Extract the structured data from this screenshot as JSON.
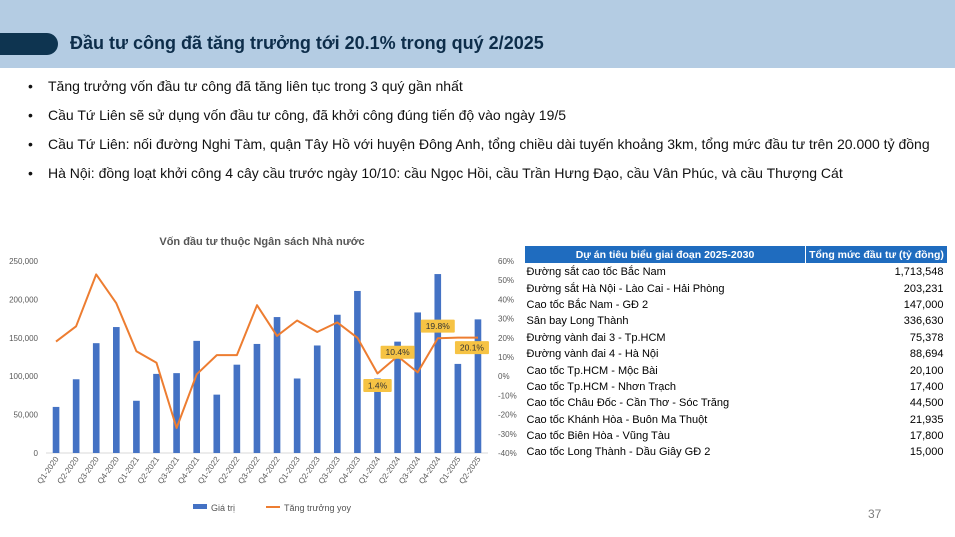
{
  "header": {
    "title": "Đầu tư công đã tăng trưởng tới 20.1% trong quý 2/2025"
  },
  "bullets": [
    "Tăng trưởng vốn đầu tư công đã tăng liên tục trong 3 quý gần nhất",
    "Cầu Tứ Liên sẽ sử dụng vốn đầu tư công, đã khởi công đúng tiến độ vào ngày 19/5",
    "Cầu Tứ Liên: nối đường Nghi Tàm, quận Tây Hồ  với huyện Đông Anh, tổng chiều dài tuyến khoảng 3km, tổng mức đầu tư trên 20.000 tỷ đồng",
    "Hà Nội: đồng loạt khởi công 4 cây cầu trước ngày 10/10: cầu Ngọc Hồi, cầu Trần Hưng Đạo, cầu Vân Phúc, và cầu Thượng Cát"
  ],
  "chart_data": {
    "type": "bar",
    "title": "Vốn đầu tư thuộc Ngân sách Nhà nước",
    "categories": [
      "Q1-2020",
      "Q2-2020",
      "Q3-2020",
      "Q4-2020",
      "Q1-2021",
      "Q2-2021",
      "Q3-2021",
      "Q4-2021",
      "Q1-2022",
      "Q2-2022",
      "Q3-2022",
      "Q4-2022",
      "Q1-2023",
      "Q2-2023",
      "Q3-2023",
      "Q4-2023",
      "Q1-2024",
      "Q2-2024",
      "Q3-2024",
      "Q4-2024",
      "Q1-2025",
      "Q2-2025"
    ],
    "series": [
      {
        "name": "Giá trị",
        "type": "bar",
        "axis": "left",
        "color": "#4472c4",
        "values": [
          60000,
          96000,
          143000,
          164000,
          68000,
          103000,
          104000,
          146000,
          76000,
          115000,
          142000,
          177000,
          97000,
          140000,
          180000,
          211000,
          97000,
          145000,
          183000,
          233000,
          116000,
          174000
        ]
      },
      {
        "name": "Tăng trưởng yoy",
        "type": "line",
        "axis": "right",
        "color": "#ed7d31",
        "values": [
          18,
          26,
          53,
          38,
          13,
          7,
          -27,
          1,
          11,
          11,
          37,
          21,
          29,
          23,
          28,
          20,
          1.4,
          10.4,
          2,
          19.8,
          20.1,
          20.1
        ]
      }
    ],
    "left_axis": {
      "ylim": [
        0,
        250000
      ],
      "ticks": [
        "0",
        "50,000",
        "100,000",
        "150,000",
        "200,000",
        "250,000"
      ]
    },
    "right_axis": {
      "ylim": [
        -40,
        60
      ],
      "ticks": [
        "-40%",
        "-30%",
        "-20%",
        "-10%",
        "0%",
        "10%",
        "20%",
        "30%",
        "40%",
        "50%",
        "60%"
      ]
    },
    "annotations": [
      {
        "text": "1.4%",
        "index": 16
      },
      {
        "text": "10.4%",
        "index": 17
      },
      {
        "text": "19.8%",
        "index": 19
      },
      {
        "text": "20.1%",
        "index": 21
      }
    ],
    "annotation_color": "#f6c344",
    "legend_position": "bottom",
    "grid": false
  },
  "table": {
    "headers": [
      "Dự án tiêu biểu giai đoạn 2025-2030",
      "Tổng mức đầu tư (tỷ đồng)"
    ],
    "rows": [
      [
        "Đường sắt cao tốc Bắc Nam",
        "1,713,548"
      ],
      [
        "Đường sắt Hà Nội - Lào Cai - Hải Phòng",
        "203,231"
      ],
      [
        "Cao tốc Bắc Nam - GĐ 2",
        "147,000"
      ],
      [
        "Sân bay Long Thành",
        "336,630"
      ],
      [
        "Đường vành đai 3 - Tp.HCM",
        "75,378"
      ],
      [
        "Đường vành đai 4 - Hà Nội",
        "88,694"
      ],
      [
        "Cao tốc Tp.HCM - Mộc Bài",
        "20,100"
      ],
      [
        "Cao tốc Tp.HCM - Nhơn Trạch",
        "17,400"
      ],
      [
        "Cao tốc Châu Đốc - Cần Thơ - Sóc Trăng",
        "44,500"
      ],
      [
        "Cao tốc Khánh Hòa - Buôn Ma Thuột",
        "21,935"
      ],
      [
        "Cao tốc Biên Hòa - Vũng Tàu",
        "17,800"
      ],
      [
        "Cao tốc Long Thành - Dầu Giây GĐ 2",
        "15,000"
      ]
    ]
  },
  "page_number": "37"
}
